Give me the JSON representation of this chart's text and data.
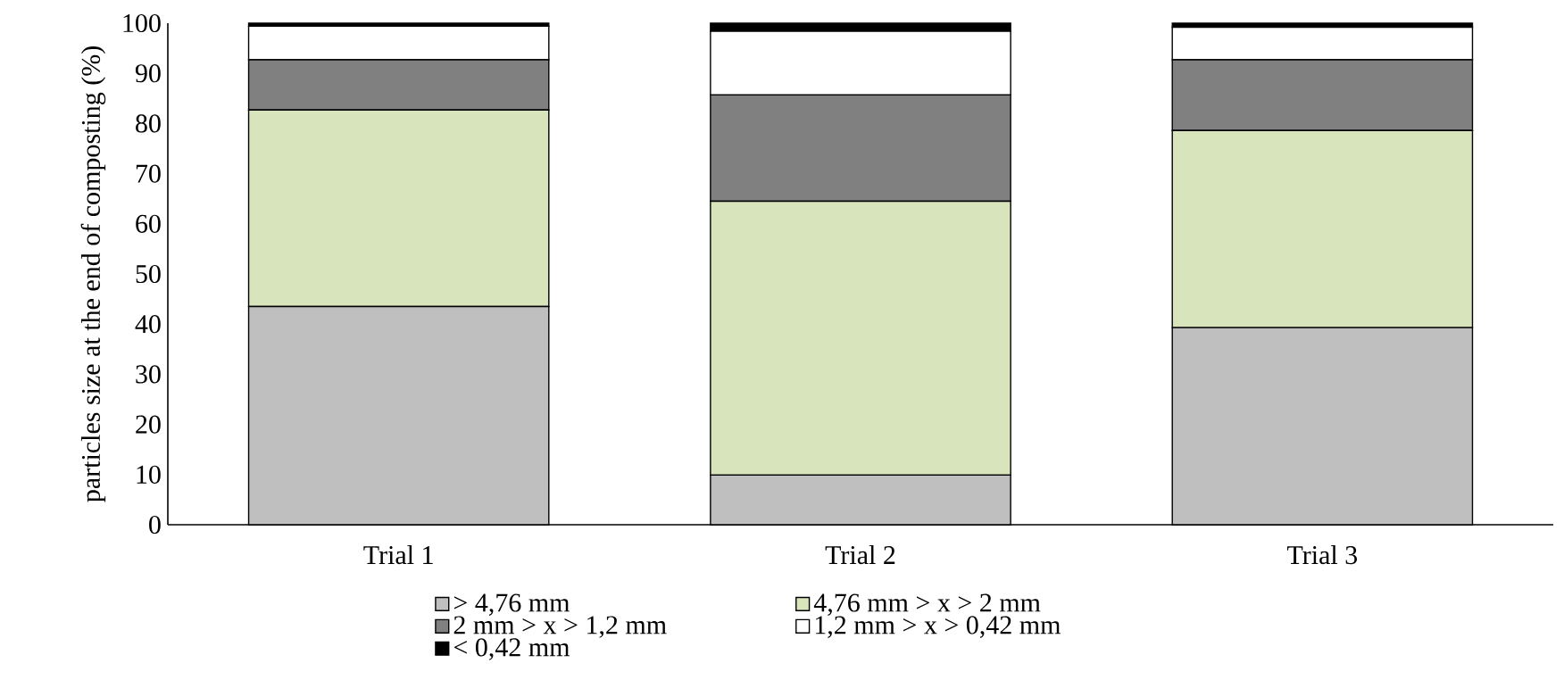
{
  "chart_data": {
    "type": "bar",
    "stacked": true,
    "ylabel": "particles size at the end of composting (%)",
    "categories": [
      "Trial 1",
      "Trial 2",
      "Trial 3"
    ],
    "series": [
      {
        "name": "> 4,76 mm",
        "color": "#bfbfbf",
        "values": [
          43.5,
          9.9,
          39.3
        ]
      },
      {
        "name": "4,76 mm > x > 2 mm",
        "color": "#d8e4bc",
        "values": [
          39.2,
          54.6,
          39.3
        ]
      },
      {
        "name": "2 mm > x > 1,2 mm",
        "color": "#808080",
        "values": [
          10.0,
          21.2,
          14.1
        ]
      },
      {
        "name": "1,2 mm > x > 0,42 mm",
        "color": "#ffffff",
        "values": [
          6.7,
          12.7,
          6.5
        ]
      },
      {
        "name": "< 0,42 mm",
        "color": "#000000",
        "values": [
          0.6,
          1.6,
          0.8
        ]
      }
    ],
    "ylim": [
      0,
      100
    ],
    "yticks": [
      0,
      10,
      20,
      30,
      40,
      50,
      60,
      70,
      80,
      90,
      100
    ],
    "grid": false,
    "legend": "bottom"
  }
}
